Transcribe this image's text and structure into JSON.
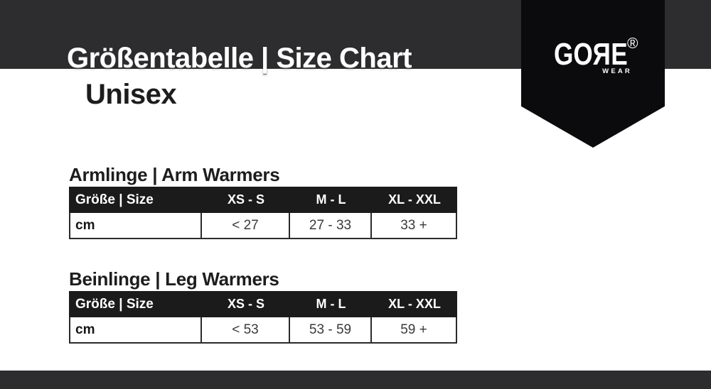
{
  "header": {
    "title": "Größentabelle | Size Chart",
    "subtitle": "Unisex"
  },
  "brand": {
    "prefix": "GO",
    "mirrored_letter": "R",
    "suffix": "E",
    "registered_mark": "®",
    "subbrand": "WEAR"
  },
  "sections": [
    {
      "heading": "Armlinge | Arm Warmers",
      "table": {
        "header_label": "Größe | Size",
        "size_columns": [
          "XS - S",
          "M - L",
          "XL - XXL"
        ],
        "row_label": "cm",
        "values": [
          "< 27",
          "27 - 33",
          "33 +"
        ]
      }
    },
    {
      "heading": "Beinlinge | Leg Warmers",
      "table": {
        "header_label": "Größe | Size",
        "size_columns": [
          "XS - S",
          "M - L",
          "XL - XXL"
        ],
        "row_label": "cm",
        "values": [
          "< 53",
          "53 - 59",
          "59 +"
        ]
      }
    }
  ],
  "colors": {
    "top_bar": "#2d2d2f",
    "bottom_bar": "#2d2d2f",
    "pennant": "#0b0b0d",
    "table_header_bg": "#1b1b1b",
    "table_border": "#2b2b2b",
    "heading_text": "#1d1d1f",
    "value_text": "#3a3a3c",
    "light_text": "#ffffff"
  }
}
